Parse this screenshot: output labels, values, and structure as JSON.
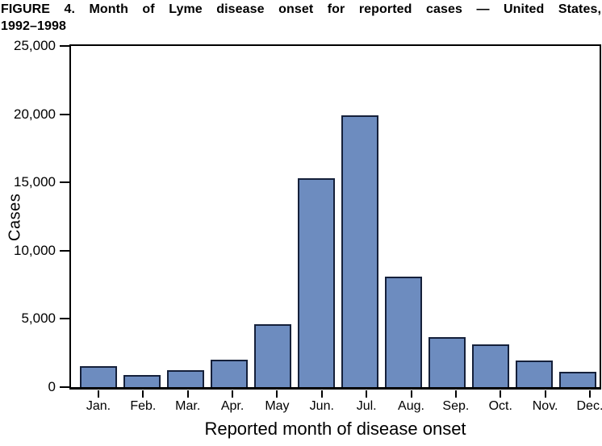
{
  "figure": {
    "title_line1": "FIGURE 4. Month of Lyme disease onset for reported cases — United States,",
    "title_line2": "1992–1998"
  },
  "chart_data": {
    "type": "bar",
    "title": "FIGURE 4. Month of Lyme disease onset for reported cases — United States, 1992–1998",
    "xlabel": "Reported month of disease onset",
    "ylabel": "Cases",
    "categories": [
      "Jan.",
      "Feb.",
      "Mar.",
      "Apr.",
      "May",
      "Jun.",
      "Jul.",
      "Aug.",
      "Sep.",
      "Oct.",
      "Nov.",
      "Dec."
    ],
    "values": [
      1550,
      900,
      1250,
      2000,
      4600,
      15300,
      19900,
      8100,
      3650,
      3150,
      1950,
      1150
    ],
    "ylim": [
      0,
      25000
    ],
    "yticks": [
      0,
      5000,
      10000,
      15000,
      20000,
      25000
    ],
    "ytick_labels": [
      "0",
      "5,000",
      "10,000",
      "15,000",
      "20,000",
      "25,000"
    ],
    "grid": false,
    "legend_position": "none",
    "bar_color": "#6d8cbf",
    "bar_border_color": "#15203a",
    "axis_color": "#000000"
  }
}
